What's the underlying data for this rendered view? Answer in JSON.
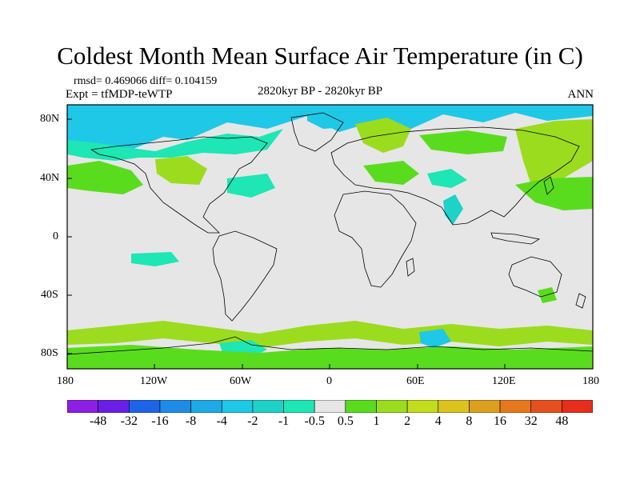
{
  "title": "Coldest Month Mean Surface Air Temperature (in C)",
  "stats": "rmsd= 0.469066 diff= 0.104159",
  "experiment": "Expt = tfMDP-teWTP",
  "period": "2820kyr BP - 2820kyr BP",
  "season": "ANN",
  "lat_ticks": [
    "80N",
    "40N",
    "0",
    "40S",
    "80S"
  ],
  "lon_ticks": [
    "180",
    "120W",
    "60W",
    "0",
    "60E",
    "120E",
    "180"
  ],
  "colorbar": {
    "labels": [
      "-48",
      "-32",
      "-16",
      "-8",
      "-4",
      "-2",
      "-1",
      "-0.5",
      "0.5",
      "1",
      "2",
      "4",
      "8",
      "16",
      "32",
      "48"
    ],
    "colors": [
      "#8c1ee6",
      "#6a1ee6",
      "#1e64e6",
      "#1e8ce6",
      "#1eaae6",
      "#1ec8e6",
      "#1ed2c8",
      "#1ee6b4",
      "#e6e6e6",
      "#5adc1e",
      "#9bdc1e",
      "#c3dc1e",
      "#dcc31e",
      "#dca01e",
      "#e6781e",
      "#e6501e",
      "#e62d1e"
    ]
  },
  "colors": {
    "neutral": "#e6e6e6",
    "cool_light": "#1ee6b4",
    "cool": "#1ed2c8",
    "cool_dark": "#1ec8e6",
    "warm_light": "#5adc1e",
    "warm": "#9bdc1e",
    "warm_dark": "#c3dc1e"
  }
}
